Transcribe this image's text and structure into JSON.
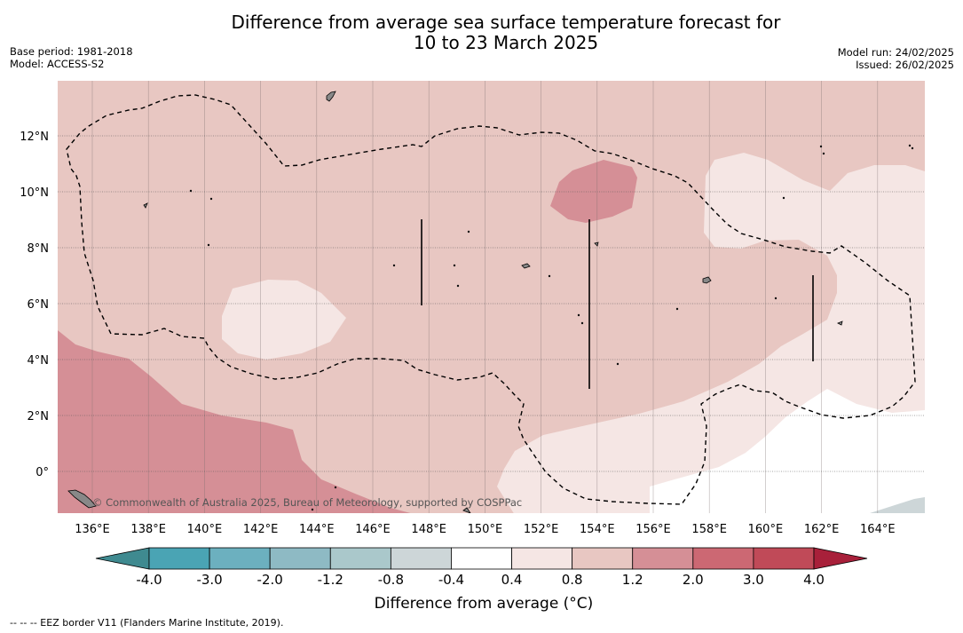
{
  "title": {
    "line1": "Difference from average sea surface temperature forecast for",
    "line2": "10 to 23 March 2025"
  },
  "meta_left": {
    "base_period": "Base period: 1981-2018",
    "model": "Model: ACCESS-S2"
  },
  "meta_right": {
    "model_run": "Model run: 24/02/2025",
    "issued": "Issued: 26/02/2025"
  },
  "map": {
    "lon_labels": [
      "136°E",
      "138°E",
      "140°E",
      "142°E",
      "144°E",
      "146°E",
      "148°E",
      "150°E",
      "152°E",
      "154°E",
      "156°E",
      "158°E",
      "160°E",
      "162°E",
      "164°E"
    ],
    "lat_labels": [
      "12°N",
      "10°N",
      "8°N",
      "6°N",
      "4°N",
      "2°N",
      "0°"
    ],
    "credit": "© Commonwealth of Australia 2025, Bureau of Meteorology, supported by COSPPac"
  },
  "legend": {
    "tick_labels": [
      "-4.0",
      "-3.0",
      "-2.0",
      "-1.2",
      "-0.8",
      "-0.4",
      "0.4",
      "0.8",
      "1.2",
      "2.0",
      "3.0",
      "4.0"
    ],
    "colors": [
      "#3f8a90",
      "#4aa4b4",
      "#6cb0bf",
      "#8ebac4",
      "#aac8cb",
      "#cdd6d8",
      "#ffffff",
      "#f5e6e4",
      "#e8c7c2",
      "#d58f96",
      "#cc6873",
      "#c04a58",
      "#a8203a"
    ],
    "title": "Difference from average (°C)",
    "footnote": "-- -- -- EEZ border V11 (Flanders Marine Institute, 2019)."
  }
}
